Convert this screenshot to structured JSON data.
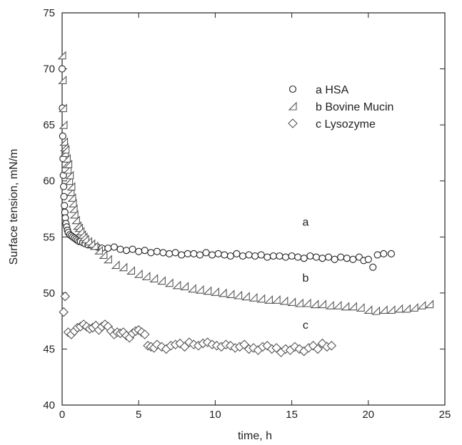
{
  "chart_data": {
    "type": "scatter",
    "title": "",
    "xlabel": "time, h",
    "ylabel": "Surface tension, mN/m",
    "xlim": [
      0,
      25
    ],
    "ylim": [
      40,
      75
    ],
    "x_ticks": [
      0,
      5,
      10,
      15,
      20,
      25
    ],
    "y_ticks": [
      40,
      45,
      50,
      55,
      60,
      65,
      70,
      75
    ],
    "grid": false,
    "legend_position": "top-right",
    "legend": [
      {
        "label": "a HSA",
        "marker": "circle"
      },
      {
        "label": "b Bovine Mucin",
        "marker": "triangle"
      },
      {
        "label": "c Lysozyme",
        "marker": "diamond"
      }
    ],
    "curve_labels": [
      "a",
      "b",
      "c"
    ],
    "series": [
      {
        "name": "a HSA",
        "marker": "circle",
        "x": [
          0.0,
          0.02,
          0.04,
          0.06,
          0.08,
          0.1,
          0.12,
          0.15,
          0.18,
          0.21,
          0.25,
          0.3,
          0.35,
          0.4,
          0.5,
          0.6,
          0.7,
          0.8,
          0.9,
          1.0,
          1.1,
          1.2,
          1.35,
          1.5,
          1.7,
          2.0,
          2.3,
          2.6,
          3.0,
          3.4,
          3.8,
          4.2,
          4.6,
          5.0,
          5.4,
          5.8,
          6.2,
          6.6,
          7.0,
          7.4,
          7.8,
          8.2,
          8.6,
          9.0,
          9.4,
          9.8,
          10.2,
          10.6,
          11.0,
          11.4,
          11.8,
          12.2,
          12.6,
          13.0,
          13.4,
          13.8,
          14.2,
          14.6,
          15.0,
          15.4,
          15.8,
          16.2,
          16.6,
          17.0,
          17.4,
          17.8,
          18.2,
          18.6,
          19.0,
          19.4,
          19.7,
          20.0,
          20.3,
          20.6,
          21.0,
          21.5
        ],
        "y": [
          70.0,
          66.5,
          64.0,
          62.0,
          60.5,
          59.5,
          58.6,
          57.8,
          57.2,
          56.7,
          56.2,
          55.9,
          55.6,
          55.4,
          55.2,
          55.1,
          55.0,
          54.9,
          54.8,
          54.7,
          54.6,
          54.6,
          54.5,
          54.4,
          54.3,
          54.2,
          54.1,
          54.0,
          54.0,
          54.1,
          53.9,
          53.8,
          53.9,
          53.7,
          53.8,
          53.6,
          53.7,
          53.6,
          53.5,
          53.6,
          53.4,
          53.5,
          53.5,
          53.4,
          53.6,
          53.4,
          53.5,
          53.4,
          53.3,
          53.5,
          53.3,
          53.4,
          53.3,
          53.4,
          53.2,
          53.3,
          53.3,
          53.2,
          53.3,
          53.2,
          53.1,
          53.3,
          53.2,
          53.1,
          53.2,
          53.0,
          53.2,
          53.1,
          53.0,
          53.2,
          52.9,
          53.0,
          52.3,
          53.4,
          53.5,
          53.5
        ]
      },
      {
        "name": "b Bovine Mucin",
        "marker": "triangle",
        "x": [
          0.0,
          0.03,
          0.06,
          0.09,
          0.12,
          0.15,
          0.18,
          0.22,
          0.26,
          0.3,
          0.35,
          0.4,
          0.45,
          0.5,
          0.55,
          0.6,
          0.65,
          0.7,
          0.75,
          0.8,
          0.9,
          1.0,
          1.1,
          1.2,
          1.3,
          1.4,
          1.5,
          1.7,
          1.9,
          2.1,
          2.4,
          2.7,
          3.0,
          3.5,
          4.0,
          4.5,
          5.0,
          5.5,
          6.0,
          6.5,
          7.0,
          7.5,
          8.0,
          8.5,
          9.0,
          9.5,
          10.0,
          10.5,
          11.0,
          11.5,
          12.0,
          12.5,
          13.0,
          13.5,
          14.0,
          14.5,
          15.0,
          15.5,
          16.0,
          16.5,
          17.0,
          17.5,
          18.0,
          18.5,
          19.0,
          19.5,
          20.0,
          20.5,
          21.0,
          21.5,
          22.0,
          22.5,
          23.0,
          23.5,
          24.0
        ],
        "y": [
          71.2,
          69.0,
          66.5,
          65.0,
          63.5,
          63.0,
          62.5,
          62.8,
          61.5,
          62.0,
          61.0,
          61.5,
          60.0,
          60.5,
          59.0,
          59.5,
          58.5,
          58.0,
          57.5,
          57.0,
          56.5,
          56.0,
          55.8,
          55.5,
          55.2,
          55.0,
          54.8,
          54.6,
          54.4,
          54.2,
          53.8,
          53.4,
          53.0,
          52.5,
          52.3,
          52.0,
          51.7,
          51.5,
          51.3,
          51.1,
          50.9,
          50.7,
          50.6,
          50.4,
          50.3,
          50.2,
          50.1,
          50.0,
          49.9,
          49.8,
          49.7,
          49.6,
          49.5,
          49.4,
          49.4,
          49.3,
          49.2,
          49.1,
          49.1,
          49.0,
          49.0,
          48.9,
          48.9,
          48.8,
          48.8,
          48.7,
          48.5,
          48.4,
          48.5,
          48.5,
          48.6,
          48.6,
          48.7,
          48.9,
          49.0
        ]
      },
      {
        "name": "c Lysozyme",
        "marker": "diamond",
        "x": [
          0.1,
          0.2,
          0.4,
          0.6,
          0.8,
          1.0,
          1.2,
          1.4,
          1.6,
          1.8,
          2.0,
          2.2,
          2.4,
          2.6,
          2.8,
          3.0,
          3.2,
          3.4,
          3.6,
          3.8,
          4.0,
          4.2,
          4.4,
          4.6,
          4.8,
          5.0,
          5.2,
          5.4,
          5.6,
          5.8,
          6.0,
          6.2,
          6.5,
          6.8,
          7.1,
          7.4,
          7.7,
          8.0,
          8.3,
          8.6,
          8.9,
          9.2,
          9.5,
          9.8,
          10.1,
          10.4,
          10.7,
          11.0,
          11.3,
          11.6,
          11.9,
          12.2,
          12.5,
          12.8,
          13.1,
          13.4,
          13.7,
          14.0,
          14.3,
          14.6,
          14.9,
          15.2,
          15.5,
          15.8,
          16.1,
          16.4,
          16.7,
          17.0,
          17.3,
          17.6
        ],
        "y": [
          48.3,
          49.7,
          46.5,
          46.3,
          46.6,
          46.9,
          47.0,
          47.2,
          47.0,
          46.8,
          46.9,
          47.1,
          46.7,
          47.0,
          47.2,
          47.0,
          46.6,
          46.3,
          46.5,
          46.4,
          46.5,
          46.2,
          46.0,
          46.4,
          46.6,
          46.7,
          46.5,
          46.3,
          45.3,
          45.2,
          45.1,
          45.4,
          45.2,
          45.0,
          45.3,
          45.4,
          45.5,
          45.2,
          45.6,
          45.4,
          45.3,
          45.5,
          45.6,
          45.4,
          45.3,
          45.2,
          45.4,
          45.3,
          45.1,
          45.2,
          45.4,
          45.0,
          45.1,
          44.9,
          45.2,
          45.3,
          45.0,
          45.1,
          44.7,
          45.0,
          44.9,
          45.2,
          45.0,
          44.8,
          45.1,
          45.3,
          45.0,
          45.5,
          45.2,
          45.3
        ]
      }
    ]
  }
}
